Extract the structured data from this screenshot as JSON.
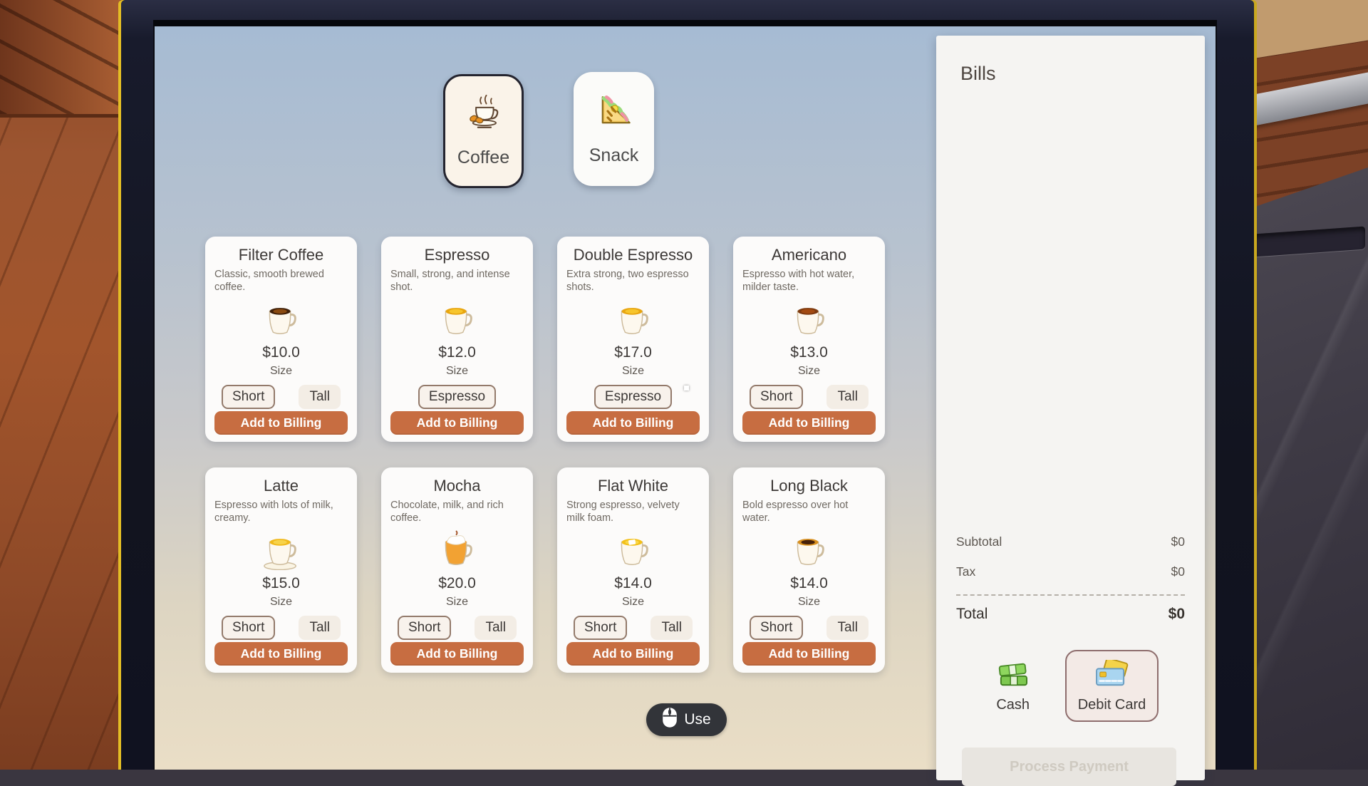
{
  "colors": {
    "accent_orange": "#c76d41",
    "size_selected_border": "#937a6b",
    "payment_selected_border": "#8e6d6d",
    "tab_selected_border": "#24242f",
    "monitor_highlight_yellow": "#e3bd25"
  },
  "tabs": {
    "items": [
      {
        "label": "Coffee",
        "icon": "coffee-cup-icon",
        "selected": true
      },
      {
        "label": "Snack",
        "icon": "sandwich-icon",
        "selected": false
      }
    ]
  },
  "products": {
    "size_label": "Size",
    "add_to_billing_label": "Add to Billing",
    "items": [
      {
        "name": "Filter Coffee",
        "description": "Classic, smooth brewed coffee.",
        "price": "$10.0",
        "sizes": [
          {
            "label": "Short",
            "selected": true
          },
          {
            "label": "Tall",
            "selected": false
          }
        ],
        "icon": {
          "liquid": "#3f1f07",
          "inner": "#8a4a10"
        }
      },
      {
        "name": "Espresso",
        "description": "Small, strong, and intense shot.",
        "price": "$12.0",
        "sizes": [
          {
            "label": "Espresso",
            "selected": true
          }
        ],
        "icon": {
          "liquid": "#e8a50f",
          "inner": "#f7c52b"
        }
      },
      {
        "name": "Double Espresso",
        "description": "Extra strong, two espresso shots.",
        "price": "$17.0",
        "sizes": [
          {
            "label": "Espresso",
            "selected": true
          }
        ],
        "icon": {
          "liquid": "#e8a50f",
          "inner": "#f7c52b"
        }
      },
      {
        "name": "Americano",
        "description": "Espresso with hot water, milder taste.",
        "price": "$13.0",
        "sizes": [
          {
            "label": "Short",
            "selected": true
          },
          {
            "label": "Tall",
            "selected": false
          }
        ],
        "icon": {
          "liquid": "#7e3a0e",
          "inner": "#a34a10"
        }
      },
      {
        "name": "Latte",
        "description": "Espresso with lots of milk, creamy.",
        "price": "$15.0",
        "sizes": [
          {
            "label": "Short",
            "selected": true
          },
          {
            "label": "Tall",
            "selected": false
          }
        ],
        "icon": {
          "liquid": "#f0b91c",
          "inner": "#f7d34a",
          "saucer": true
        }
      },
      {
        "name": "Mocha",
        "description": "Chocolate, milk, and rich coffee.",
        "price": "$20.0",
        "sizes": [
          {
            "label": "Short",
            "selected": true
          },
          {
            "label": "Tall",
            "selected": false
          }
        ],
        "icon": {
          "liquid": "#f2a233",
          "body": "#f2a233",
          "cream": true
        }
      },
      {
        "name": "Flat White",
        "description": "Strong espresso, velvety milk foam.",
        "price": "$14.0",
        "sizes": [
          {
            "label": "Short",
            "selected": true
          },
          {
            "label": "Tall",
            "selected": false
          }
        ],
        "icon": {
          "liquid": "#f3c018",
          "inner": "#f8d64a",
          "foam_square": true
        }
      },
      {
        "name": "Long Black",
        "description": "Bold espresso over hot water.",
        "price": "$14.0",
        "sizes": [
          {
            "label": "Short",
            "selected": true
          },
          {
            "label": "Tall",
            "selected": false
          }
        ],
        "icon": {
          "liquid": "#d89020",
          "inner": "#46210a"
        }
      }
    ]
  },
  "billing": {
    "title": "Bills",
    "subtotal_label": "Subtotal",
    "subtotal_value": "$0",
    "tax_label": "Tax",
    "tax_value": "$0",
    "total_label": "Total",
    "total_value": "$0",
    "payments": [
      {
        "label": "Cash",
        "icon": "cash-icon",
        "selected": false
      },
      {
        "label": "Debit Card",
        "icon": "debit-card-icon",
        "selected": true
      }
    ],
    "process_label": "Process Payment"
  },
  "hud": {
    "use_label": "Use",
    "icon": "mouse-icon"
  }
}
